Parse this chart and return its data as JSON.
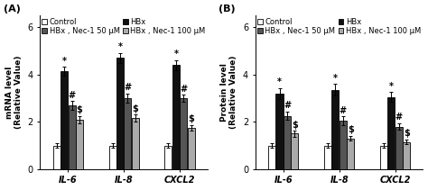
{
  "panel_A": {
    "title": "(A)",
    "ylabel": "mRNA level\n(Relative Value)",
    "categories": [
      "IL-6",
      "IL-8",
      "CXCL2"
    ],
    "control": [
      1.0,
      1.0,
      1.0
    ],
    "hbx": [
      4.15,
      4.7,
      4.4
    ],
    "nec1_50": [
      2.7,
      3.0,
      3.0
    ],
    "nec1_100": [
      2.1,
      2.15,
      1.75
    ],
    "control_err": [
      0.08,
      0.08,
      0.08
    ],
    "hbx_err": [
      0.18,
      0.22,
      0.22
    ],
    "nec1_50_err": [
      0.18,
      0.2,
      0.15
    ],
    "nec1_100_err": [
      0.15,
      0.15,
      0.12
    ],
    "ylim": [
      0,
      6.5
    ],
    "yticks": [
      0,
      2,
      4,
      6
    ]
  },
  "panel_B": {
    "title": "(B)",
    "ylabel": "Protein level\n(Relative Value)",
    "categories": [
      "IL-6",
      "IL-8",
      "CXCL2"
    ],
    "control": [
      1.0,
      1.0,
      1.0
    ],
    "hbx": [
      3.2,
      3.35,
      3.05
    ],
    "nec1_50": [
      2.25,
      2.05,
      1.8
    ],
    "nec1_100": [
      1.5,
      1.3,
      1.15
    ],
    "control_err": [
      0.08,
      0.08,
      0.08
    ],
    "hbx_err": [
      0.22,
      0.25,
      0.2
    ],
    "nec1_50_err": [
      0.18,
      0.18,
      0.15
    ],
    "nec1_100_err": [
      0.12,
      0.1,
      0.1
    ],
    "ylim": [
      0,
      6.5
    ],
    "yticks": [
      0,
      2,
      4,
      6
    ]
  },
  "colors": {
    "control": "#ffffff",
    "hbx": "#111111",
    "nec1_50": "#555555",
    "nec1_100": "#aaaaaa"
  },
  "bar_width": 0.13,
  "bar_edge_color": "black",
  "bar_edge_width": 0.6,
  "legend_labels": [
    "Control",
    "HBx , Nec-1 50 μM",
    "HBx",
    "HBx , Nec-1 100 μM"
  ],
  "fontsize_ylabel": 6.5,
  "fontsize_ticks": 7,
  "fontsize_title": 8,
  "fontsize_legend": 6,
  "fontsize_sig": 7
}
